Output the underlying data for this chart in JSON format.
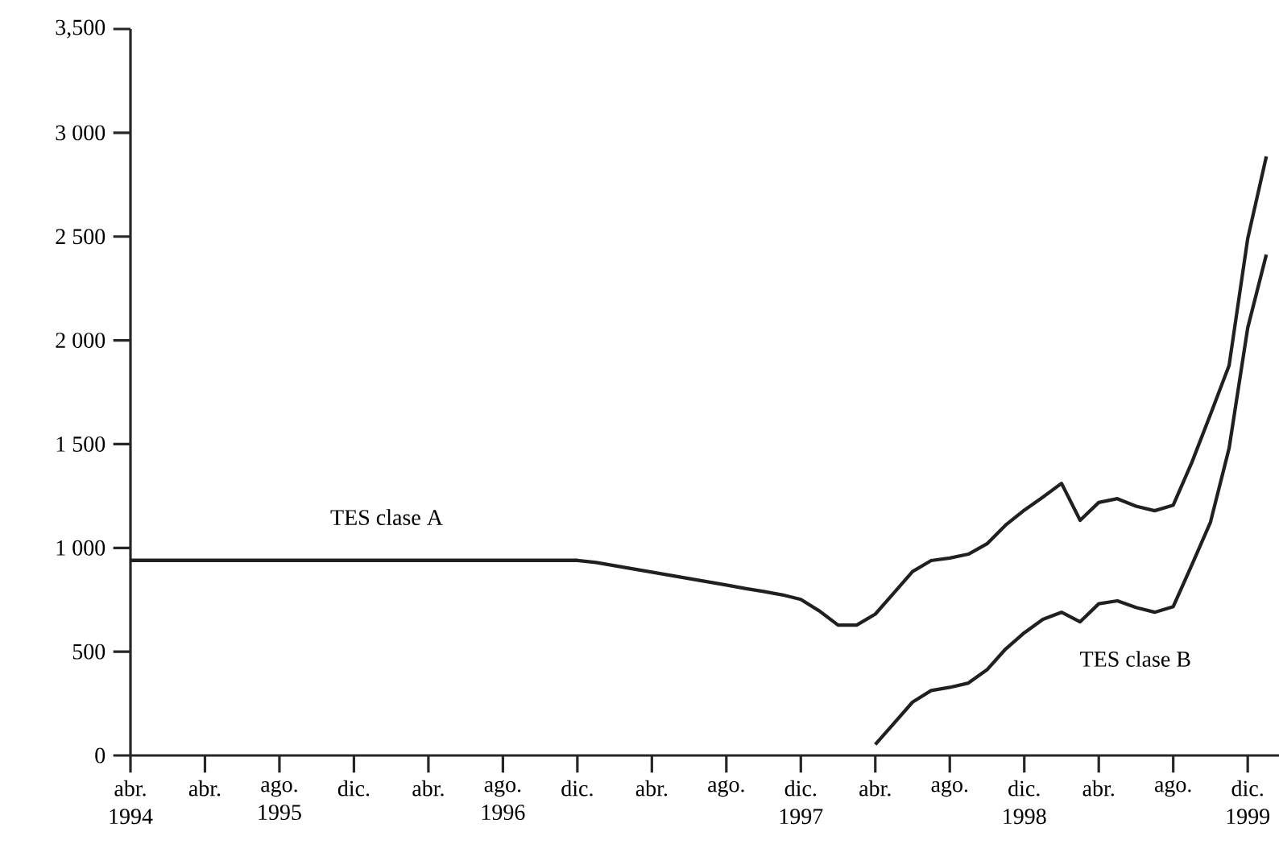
{
  "chart_data": {
    "type": "line",
    "categories": [
      "abr. 1994",
      null,
      null,
      null,
      "abr.",
      null,
      null,
      null,
      "ago. 1995",
      null,
      null,
      null,
      "dic.",
      null,
      null,
      null,
      "abr.",
      null,
      null,
      null,
      "ago. 1996",
      null,
      null,
      null,
      "dic.",
      null,
      null,
      null,
      "abr.",
      null,
      null,
      null,
      "ago.",
      null,
      null,
      null,
      "dic. 1997",
      null,
      null,
      null,
      "abr.",
      null,
      null,
      null,
      "ago.",
      null,
      null,
      null,
      "dic. 1998",
      null,
      null,
      null,
      "abr.",
      null,
      null,
      null,
      "ago.",
      null,
      null,
      null,
      "dic. 1999",
      null
    ],
    "ylim": [
      0,
      3500
    ],
    "yticks": [
      0,
      500,
      {
        "value": 1000,
        "label": "1 000"
      },
      {
        "value": 1500,
        "label": "1 500"
      },
      {
        "value": 2000,
        "label": "2 000"
      },
      {
        "value": 2500,
        "label": "2 500"
      },
      {
        "value": 3000,
        "label": "3 000"
      },
      {
        "value": 3500,
        "label": "3,500"
      }
    ],
    "line_style": "solid",
    "series": [
      {
        "color": "#231f20",
        "values": [
          940,
          940,
          940,
          940,
          940,
          940,
          940,
          940,
          940,
          940,
          940,
          940,
          940,
          940,
          940,
          940,
          940,
          940,
          940,
          940,
          940,
          940,
          940,
          940,
          940,
          930,
          914,
          899,
          883,
          868,
          852,
          837,
          821,
          805,
          790,
          774,
          752,
          696,
          628,
          628,
          681,
          783,
          886,
          939,
          951,
          970,
          1020,
          1110,
          1182,
          1245,
          1311,
          1133,
          1219,
          1237,
          1201,
          1179,
          1206,
          1412,
          1643,
          1879,
          2490,
          2886
        ]
      },
      {
        "color": "#231f20",
        "values": [
          null,
          null,
          null,
          null,
          null,
          null,
          null,
          null,
          null,
          null,
          null,
          null,
          null,
          null,
          null,
          null,
          null,
          null,
          null,
          null,
          null,
          null,
          null,
          null,
          null,
          null,
          null,
          null,
          null,
          null,
          null,
          null,
          null,
          null,
          null,
          null,
          null,
          null,
          null,
          null,
          53,
          155,
          257,
          313,
          328,
          349,
          413,
          513,
          591,
          656,
          690,
          644,
          731,
          745,
          713,
          690,
          717,
          918,
          1124,
          1480,
          2060,
          2413
        ]
      }
    ],
    "annotations": [
      "TES clase A",
      "TES clase B"
    ]
  }
}
